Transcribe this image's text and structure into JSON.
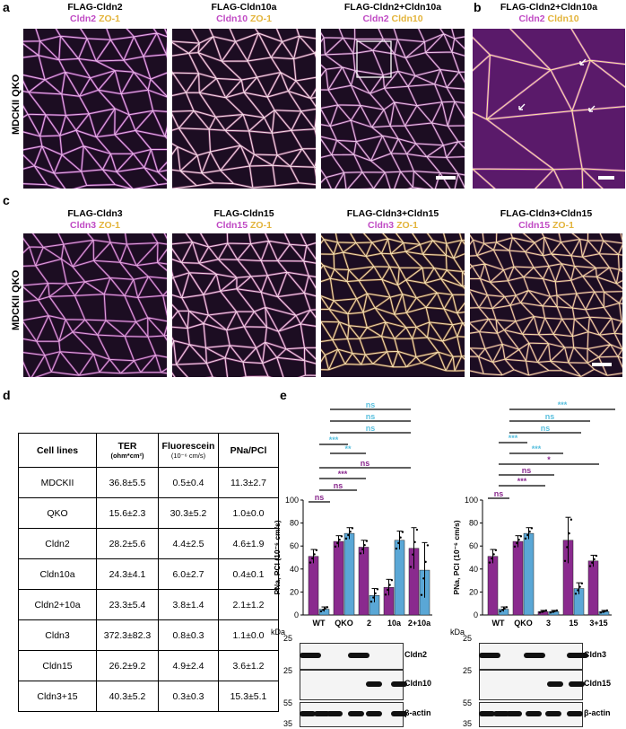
{
  "panels": {
    "a": "a",
    "b": "b",
    "c": "c",
    "d": "d",
    "e": "e"
  },
  "row_label": "MDCKII QKO",
  "row_a": [
    {
      "title": "FLAG-Cldn2",
      "stain1": "Cldn2",
      "stain2": "ZO-1"
    },
    {
      "title": "FLAG-Cldn10a",
      "stain1": "Cldn10",
      "stain2": "ZO-1"
    },
    {
      "title": "FLAG-Cldn2+Cldn10a",
      "stain1": "Cldn2",
      "stain2": "Cldn10"
    }
  ],
  "panel_b": {
    "title": "FLAG-Cldn2+Cldn10a",
    "stain1": "Cldn2",
    "stain2": "Cldn10"
  },
  "row_c": [
    {
      "title": "FLAG-Cldn3",
      "stain1": "Cldn3",
      "stain2": "ZO-1"
    },
    {
      "title": "FLAG-Cldn15",
      "stain1": "Cldn15",
      "stain2": "ZO-1"
    },
    {
      "title": "FLAG-Cldn3+Cldn15",
      "stain1": "Cldn3",
      "stain2": "ZO-1"
    },
    {
      "title": "FLAG-Cldn3+Cldn15",
      "stain1": "Cldn15",
      "stain2": "ZO-1"
    }
  ],
  "table": {
    "headers": [
      "Cell lines",
      "TER",
      "Fluorescein",
      "PNa/PCl"
    ],
    "header_units": [
      "",
      "(ohm*cm²)",
      "(10⁻⁶ cm/s)",
      ""
    ],
    "rows": [
      [
        "MDCKII",
        "36.8±5.5",
        "0.5±0.4",
        "11.3±2.7"
      ],
      [
        "QKO",
        "15.6±2.3",
        "30.3±5.2",
        "1.0±0.0"
      ],
      [
        "Cldn2",
        "28.2±5.6",
        "4.4±2.5",
        "4.6±1.9"
      ],
      [
        "Cldn10a",
        "24.3±4.1",
        "6.0±2.7",
        "0.4±0.1"
      ],
      [
        "Cldn2+10a",
        "23.3±5.4",
        "3.8±1.4",
        "2.1±1.2"
      ],
      [
        "Cldn3",
        "372.3±82.3",
        "0.8±0.3",
        "1.1±0.0"
      ],
      [
        "Cldn15",
        "26.2±9.2",
        "4.9±2.4",
        "3.6±1.2"
      ],
      [
        "Cldn3+15",
        "40.3±5.2",
        "0.3±0.3",
        "15.3±5.1"
      ]
    ]
  },
  "chart_data": [
    {
      "type": "bar",
      "ylabel": "PNa, PCl (10⁻⁶ cm/s)",
      "ylim": [
        0,
        100
      ],
      "yticks": [
        0,
        20,
        40,
        60,
        80,
        100
      ],
      "categories": [
        "WT",
        "QKO",
        "2",
        "10a",
        "2+10a"
      ],
      "series": [
        {
          "name": "PNa",
          "color": "#8a2a8e",
          "values": [
            51,
            64,
            59,
            24,
            58
          ],
          "errors": [
            6,
            5,
            6,
            7,
            18
          ]
        },
        {
          "name": "PCl",
          "color": "#5aa7d6",
          "values": [
            5,
            71,
            17,
            65,
            39
          ],
          "errors": [
            2,
            5,
            6,
            8,
            24
          ]
        }
      ],
      "significance": [
        {
          "text": "ns",
          "color": "#5bc0de"
        },
        {
          "text": "ns",
          "color": "#5bc0de"
        },
        {
          "text": "ns",
          "color": "#5bc0de"
        },
        {
          "text": "***",
          "color": "#5bc0de"
        },
        {
          "text": "**",
          "color": "#5bc0de"
        },
        {
          "text": "ns",
          "color": "#8a2a8e"
        },
        {
          "text": "***",
          "color": "#8a2a8e"
        },
        {
          "text": "ns",
          "color": "#8a2a8e"
        },
        {
          "text": "ns",
          "color": "#8a2a8e"
        }
      ],
      "blots": [
        {
          "label": "Cldn2",
          "kda": "25"
        },
        {
          "label": "Cldn10",
          "kda": "25"
        },
        {
          "label": "β-actin",
          "kda_top": "55",
          "kda_bottom": "35"
        }
      ]
    },
    {
      "type": "bar",
      "ylabel": "PNa, PCl (10⁻⁶ cm/s)",
      "ylim": [
        0,
        100
      ],
      "yticks": [
        0,
        20,
        40,
        60,
        80,
        100
      ],
      "categories": [
        "WT",
        "QKO",
        "3",
        "15",
        "3+15"
      ],
      "series": [
        {
          "name": "PNa",
          "color": "#8a2a8e",
          "values": [
            51,
            64,
            3,
            65,
            47
          ],
          "errors": [
            6,
            5,
            1,
            20,
            5
          ]
        },
        {
          "name": "PCl",
          "color": "#5aa7d6",
          "values": [
            5,
            71,
            3,
            23,
            3
          ],
          "errors": [
            2,
            5,
            1,
            5,
            1
          ]
        }
      ],
      "significance": [
        {
          "text": "***",
          "color": "#5bc0de"
        },
        {
          "text": "ns",
          "color": "#5bc0de"
        },
        {
          "text": "ns",
          "color": "#5bc0de"
        },
        {
          "text": "***",
          "color": "#5bc0de"
        },
        {
          "text": "***",
          "color": "#5bc0de"
        },
        {
          "text": "*",
          "color": "#8a2a8e"
        },
        {
          "text": "ns",
          "color": "#8a2a8e"
        },
        {
          "text": "***",
          "color": "#8a2a8e"
        },
        {
          "text": "ns",
          "color": "#8a2a8e"
        }
      ],
      "blots": [
        {
          "label": "Cldn3",
          "kda": "25"
        },
        {
          "label": "Cldn15",
          "kda": "25"
        },
        {
          "label": "β-actin",
          "kda_top": "55",
          "kda_bottom": "35"
        }
      ]
    }
  ],
  "kda_label": "kDa"
}
